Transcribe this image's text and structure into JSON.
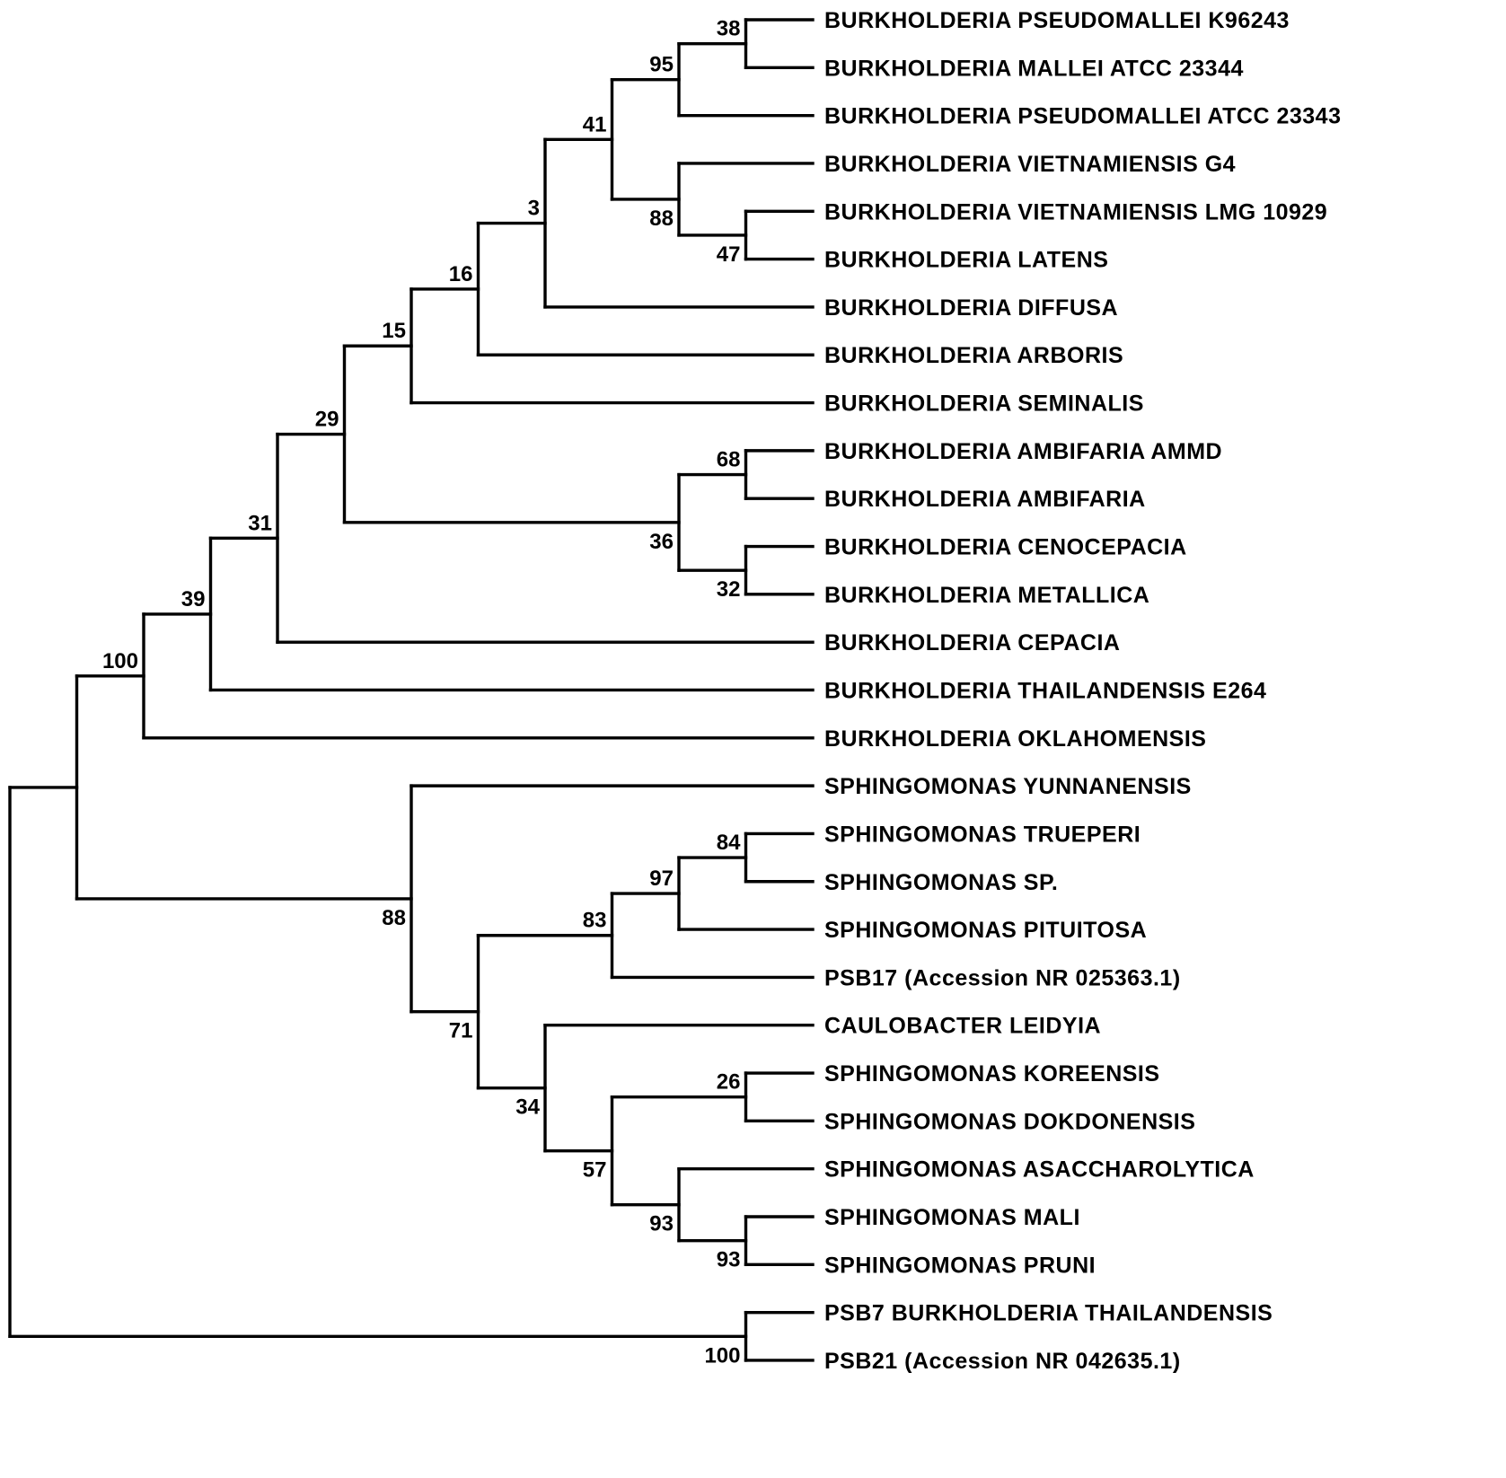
{
  "figure": {
    "type": "phylogenetic-tree",
    "leaf_count": 29,
    "colors": {
      "line": "#000000",
      "text": "#000000",
      "background": "#ffffff"
    }
  },
  "tree": {
    "children": [
      {
        "children": [
          {
            "bootstrap": 100,
            "children": [
              {
                "bootstrap": 39,
                "children": [
                  {
                    "bootstrap": 31,
                    "children": [
                      {
                        "bootstrap": 29,
                        "children": [
                          {
                            "bootstrap": 15,
                            "children": [
                              {
                                "bootstrap": 16,
                                "children": [
                                  {
                                    "bootstrap": 3,
                                    "children": [
                                      {
                                        "bootstrap": 41,
                                        "children": [
                                          {
                                            "bootstrap": 95,
                                            "children": [
                                              {
                                                "bootstrap": 38,
                                                "children": [
                                                  {
                                                    "name": "BURKHOLDERIA PSEUDOMALLEI K96243"
                                                  },
                                                  {
                                                    "name": "BURKHOLDERIA MALLEI ATCC 23344"
                                                  }
                                                ]
                                              },
                                              {
                                                "name": "BURKHOLDERIA PSEUDOMALLEI ATCC 23343"
                                              }
                                            ]
                                          },
                                          {
                                            "bootstrap": 88,
                                            "children": [
                                              {
                                                "name": "BURKHOLDERIA VIETNAMIENSIS G4"
                                              },
                                              {
                                                "bootstrap": 47,
                                                "children": [
                                                  {
                                                    "name": "BURKHOLDERIA VIETNAMIENSIS LMG 10929"
                                                  },
                                                  {
                                                    "name": "BURKHOLDERIA LATENS"
                                                  }
                                                ]
                                              }
                                            ]
                                          }
                                        ]
                                      },
                                      {
                                        "name": "BURKHOLDERIA DIFFUSA"
                                      }
                                    ]
                                  },
                                  {
                                    "name": "BURKHOLDERIA ARBORIS"
                                  }
                                ]
                              },
                              {
                                "name": "BURKHOLDERIA SEMINALIS"
                              }
                            ]
                          },
                          {
                            "bootstrap": 36,
                            "children": [
                              {
                                "bootstrap": 68,
                                "children": [
                                  {
                                    "name": "BURKHOLDERIA AMBIFARIA AMMD"
                                  },
                                  {
                                    "name": "BURKHOLDERIA AMBIFARIA"
                                  }
                                ]
                              },
                              {
                                "bootstrap": 32,
                                "children": [
                                  {
                                    "name": "BURKHOLDERIA CENOCEPACIA"
                                  },
                                  {
                                    "name": "BURKHOLDERIA METALLICA"
                                  }
                                ]
                              }
                            ]
                          }
                        ]
                      },
                      {
                        "name": "BURKHOLDERIA CEPACIA"
                      }
                    ]
                  },
                  {
                    "name": "BURKHOLDERIA THAILANDENSIS E264"
                  }
                ]
              },
              {
                "name": "BURKHOLDERIA OKLAHOMENSIS"
              }
            ]
          },
          {
            "bootstrap": 88,
            "children": [
              {
                "name": "SPHINGOMONAS YUNNANENSIS"
              },
              {
                "bootstrap": 71,
                "children": [
                  {
                    "bootstrap": 83,
                    "children": [
                      {
                        "bootstrap": 97,
                        "children": [
                          {
                            "bootstrap": 84,
                            "children": [
                              {
                                "name": "SPHINGOMONAS TRUEPERI"
                              },
                              {
                                "name": "SPHINGOMONAS SP."
                              }
                            ]
                          },
                          {
                            "name": "SPHINGOMONAS PITUITOSA"
                          }
                        ]
                      },
                      {
                        "name": "PSB17 (Accession NR 025363.1)"
                      }
                    ]
                  },
                  {
                    "bootstrap": 34,
                    "children": [
                      {
                        "name": "CAULOBACTER LEIDYIA"
                      },
                      {
                        "bootstrap": 57,
                        "children": [
                          {
                            "bootstrap": 26,
                            "children": [
                              {
                                "name": "SPHINGOMONAS KOREENSIS"
                              },
                              {
                                "name": "SPHINGOMONAS DOKDONENSIS"
                              }
                            ]
                          },
                          {
                            "bootstrap": 93,
                            "children": [
                              {
                                "name": "SPHINGOMONAS ASACCHAROLYTICA"
                              },
                              {
                                "bootstrap": 93,
                                "children": [
                                  {
                                    "name": "SPHINGOMONAS MALI"
                                  },
                                  {
                                    "name": "SPHINGOMONAS PRUNI"
                                  }
                                ]
                              }
                            ]
                          }
                        ]
                      }
                    ]
                  }
                ]
              }
            ]
          }
        ]
      },
      {
        "bootstrap": 100,
        "children": [
          {
            "name": "PSB7 BURKHOLDERIA THAILANDENSIS"
          },
          {
            "name": "PSB21 (Accession NR 042635.1)"
          }
        ]
      }
    ]
  }
}
